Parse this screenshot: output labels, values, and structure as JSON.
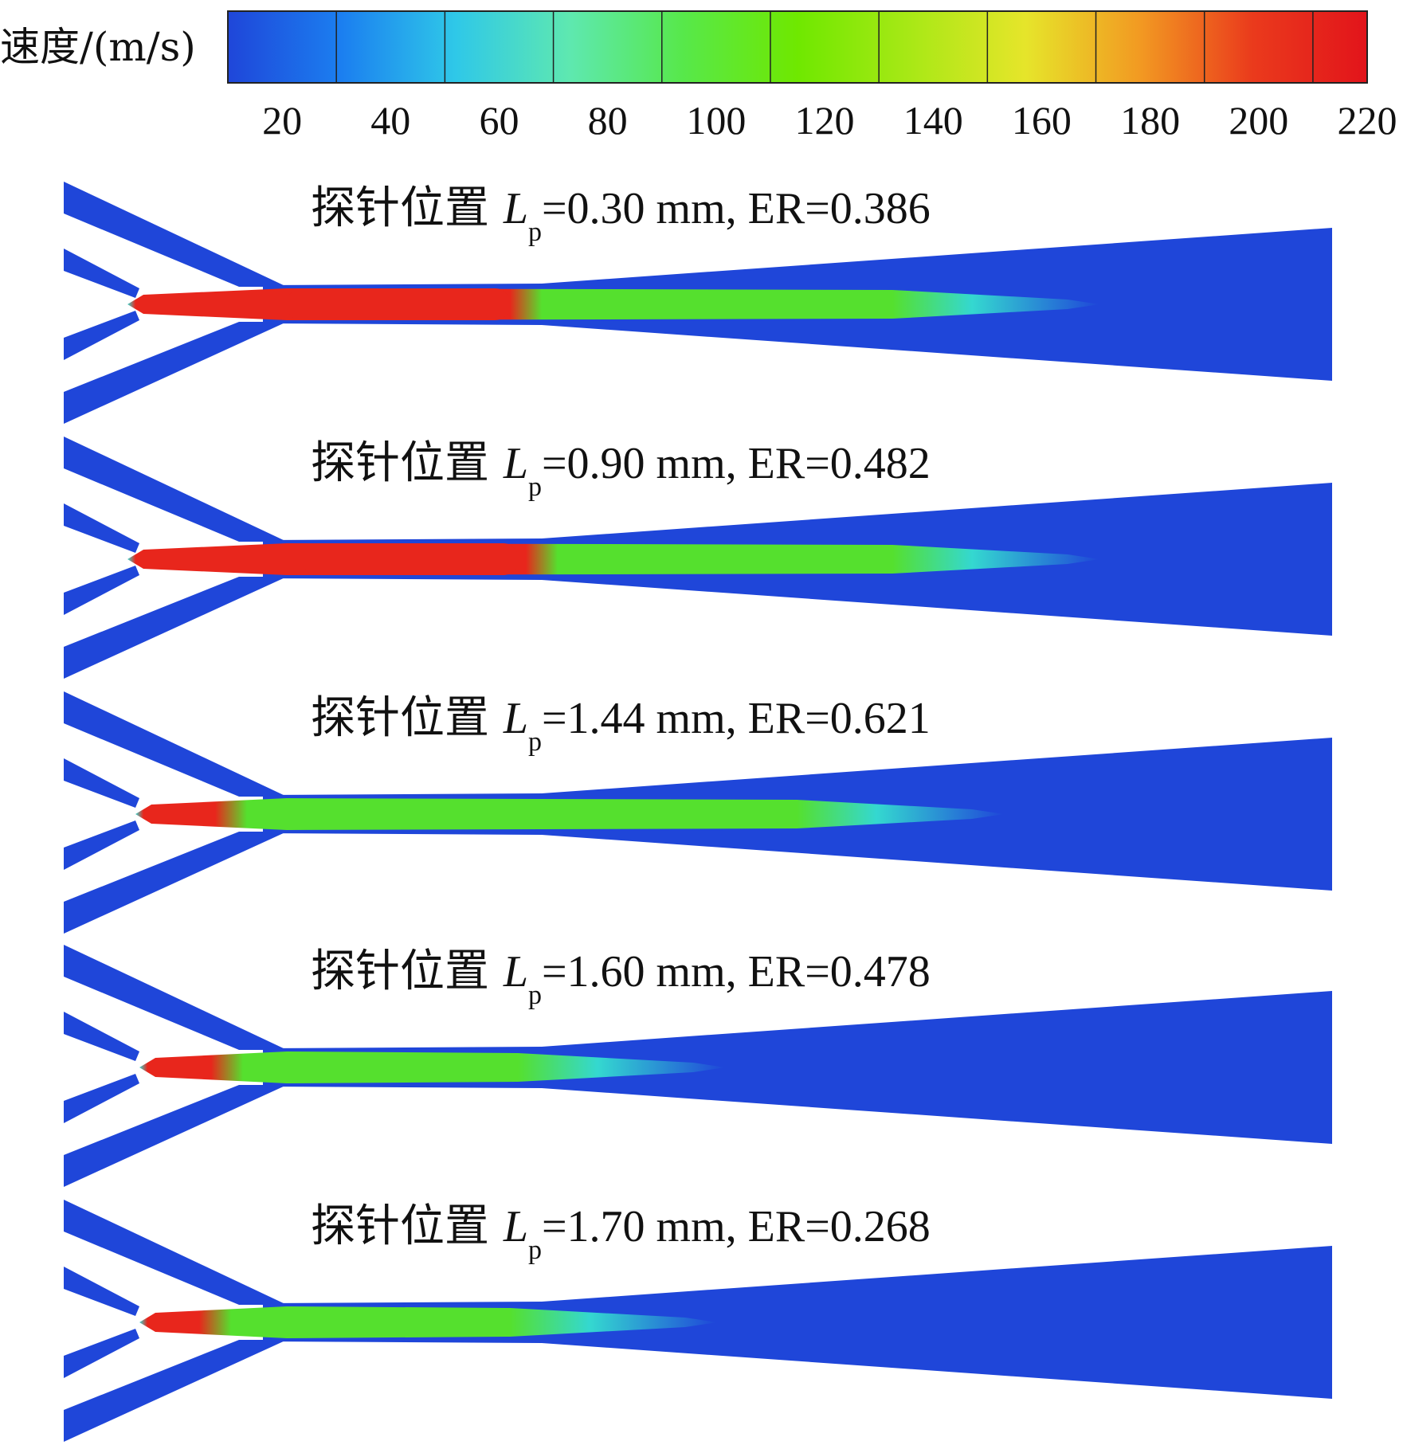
{
  "colorbar": {
    "label": "速度/(m/s)",
    "ticks": [
      "20",
      "40",
      "60",
      "80",
      "100",
      "120",
      "140",
      "160",
      "180",
      "200",
      "220"
    ],
    "colors": [
      "#1f46d9",
      "#1b7ff0",
      "#2fc8e8",
      "#5ee8b0",
      "#57e84a",
      "#6fe800",
      "#a9e816",
      "#e6e52a",
      "#f29a22",
      "#ea3a1c",
      "#e2141b"
    ]
  },
  "panels": [
    {
      "prefix": "探针位置 ",
      "var_main": "L",
      "var_sub": "p",
      "value_text": "=0.30 mm, ER=0.386"
    },
    {
      "prefix": "探针位置 ",
      "var_main": "L",
      "var_sub": "p",
      "value_text": "=0.90 mm, ER=0.482"
    },
    {
      "prefix": "探针位置 ",
      "var_main": "L",
      "var_sub": "p",
      "value_text": "=1.44 mm, ER=0.621"
    },
    {
      "prefix": "探针位置 ",
      "var_main": "L",
      "var_sub": "p",
      "value_text": "=1.60 mm, ER=0.478"
    },
    {
      "prefix": "探针位置 ",
      "var_main": "L",
      "var_sub": "p",
      "value_text": "=1.70 mm, ER=0.268"
    }
  ],
  "field_colors": {
    "wall": "#1f46d9",
    "jet_red": "#e8261c",
    "jet_green": "#55e02e",
    "jet_cyan": "#34d8d0"
  }
}
